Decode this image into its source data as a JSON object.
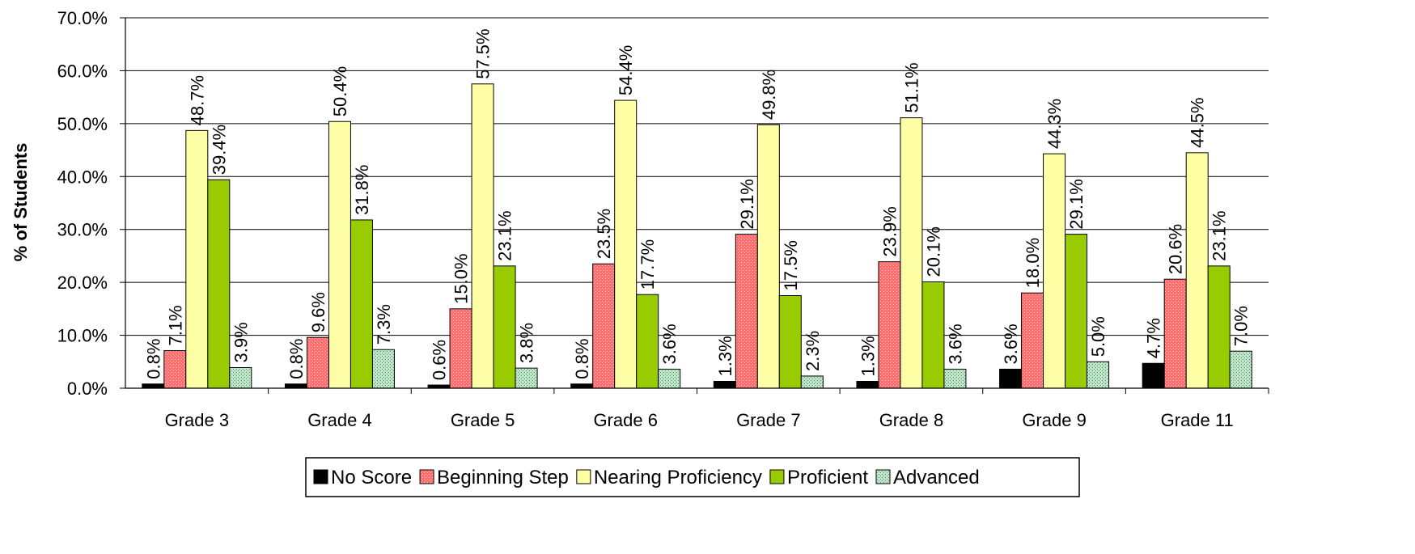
{
  "chart_data": {
    "type": "bar",
    "title": "",
    "xlabel": "",
    "ylabel": "% of Students",
    "ylim": [
      0,
      70
    ],
    "yticks": [
      "0.0%",
      "10.0%",
      "20.0%",
      "30.0%",
      "40.0%",
      "50.0%",
      "60.0%",
      "70.0%"
    ],
    "grid": true,
    "legend": "bottom",
    "categories": [
      "Grade 3",
      "Grade 4",
      "Grade 5",
      "Grade 6",
      "Grade 7",
      "Grade 8",
      "Grade 9",
      "Grade 11"
    ],
    "series": [
      {
        "name": "No Score",
        "color": "#000000",
        "pattern": "none",
        "values": [
          0.8,
          0.8,
          0.6,
          0.8,
          1.3,
          1.3,
          3.6,
          4.7
        ],
        "labels": [
          "0.8%",
          "0.8%",
          "0.6%",
          "0.8%",
          "1.3%",
          "1.3%",
          "3.6%",
          "4.7%"
        ]
      },
      {
        "name": "Beginning Step",
        "color": "#ff6f6f",
        "pattern": "fine-dots",
        "values": [
          7.1,
          9.6,
          15.0,
          23.5,
          29.1,
          23.9,
          18.0,
          20.6
        ],
        "labels": [
          "7.1%",
          "9.6%",
          "15.0%",
          "23.5%",
          "29.1%",
          "23.9%",
          "18.0%",
          "20.6%"
        ]
      },
      {
        "name": "Nearing Proficiency",
        "color": "#ffffa6",
        "pattern": "none",
        "values": [
          48.7,
          50.4,
          57.5,
          54.4,
          49.8,
          51.1,
          44.3,
          44.5
        ],
        "labels": [
          "48.7%",
          "50.4%",
          "57.5%",
          "54.4%",
          "49.8%",
          "51.1%",
          "44.3%",
          "44.5%"
        ]
      },
      {
        "name": "Proficient",
        "color": "#99cc00",
        "pattern": "none",
        "values": [
          39.4,
          31.8,
          23.1,
          17.7,
          17.5,
          20.1,
          29.1,
          23.1
        ],
        "labels": [
          "39.4%",
          "31.8%",
          "23.1%",
          "17.7%",
          "17.5%",
          "20.1%",
          "29.1%",
          "23.1%"
        ]
      },
      {
        "name": "Advanced",
        "color": "#a8dcb8",
        "pattern": "dots",
        "values": [
          3.9,
          7.3,
          3.8,
          3.6,
          2.3,
          3.6,
          5.0,
          7.0
        ],
        "labels": [
          "3.9%",
          "7.3%",
          "3.8%",
          "3.6%",
          "2.3%",
          "3.6%",
          "5.0%",
          "7.0%"
        ]
      }
    ]
  }
}
